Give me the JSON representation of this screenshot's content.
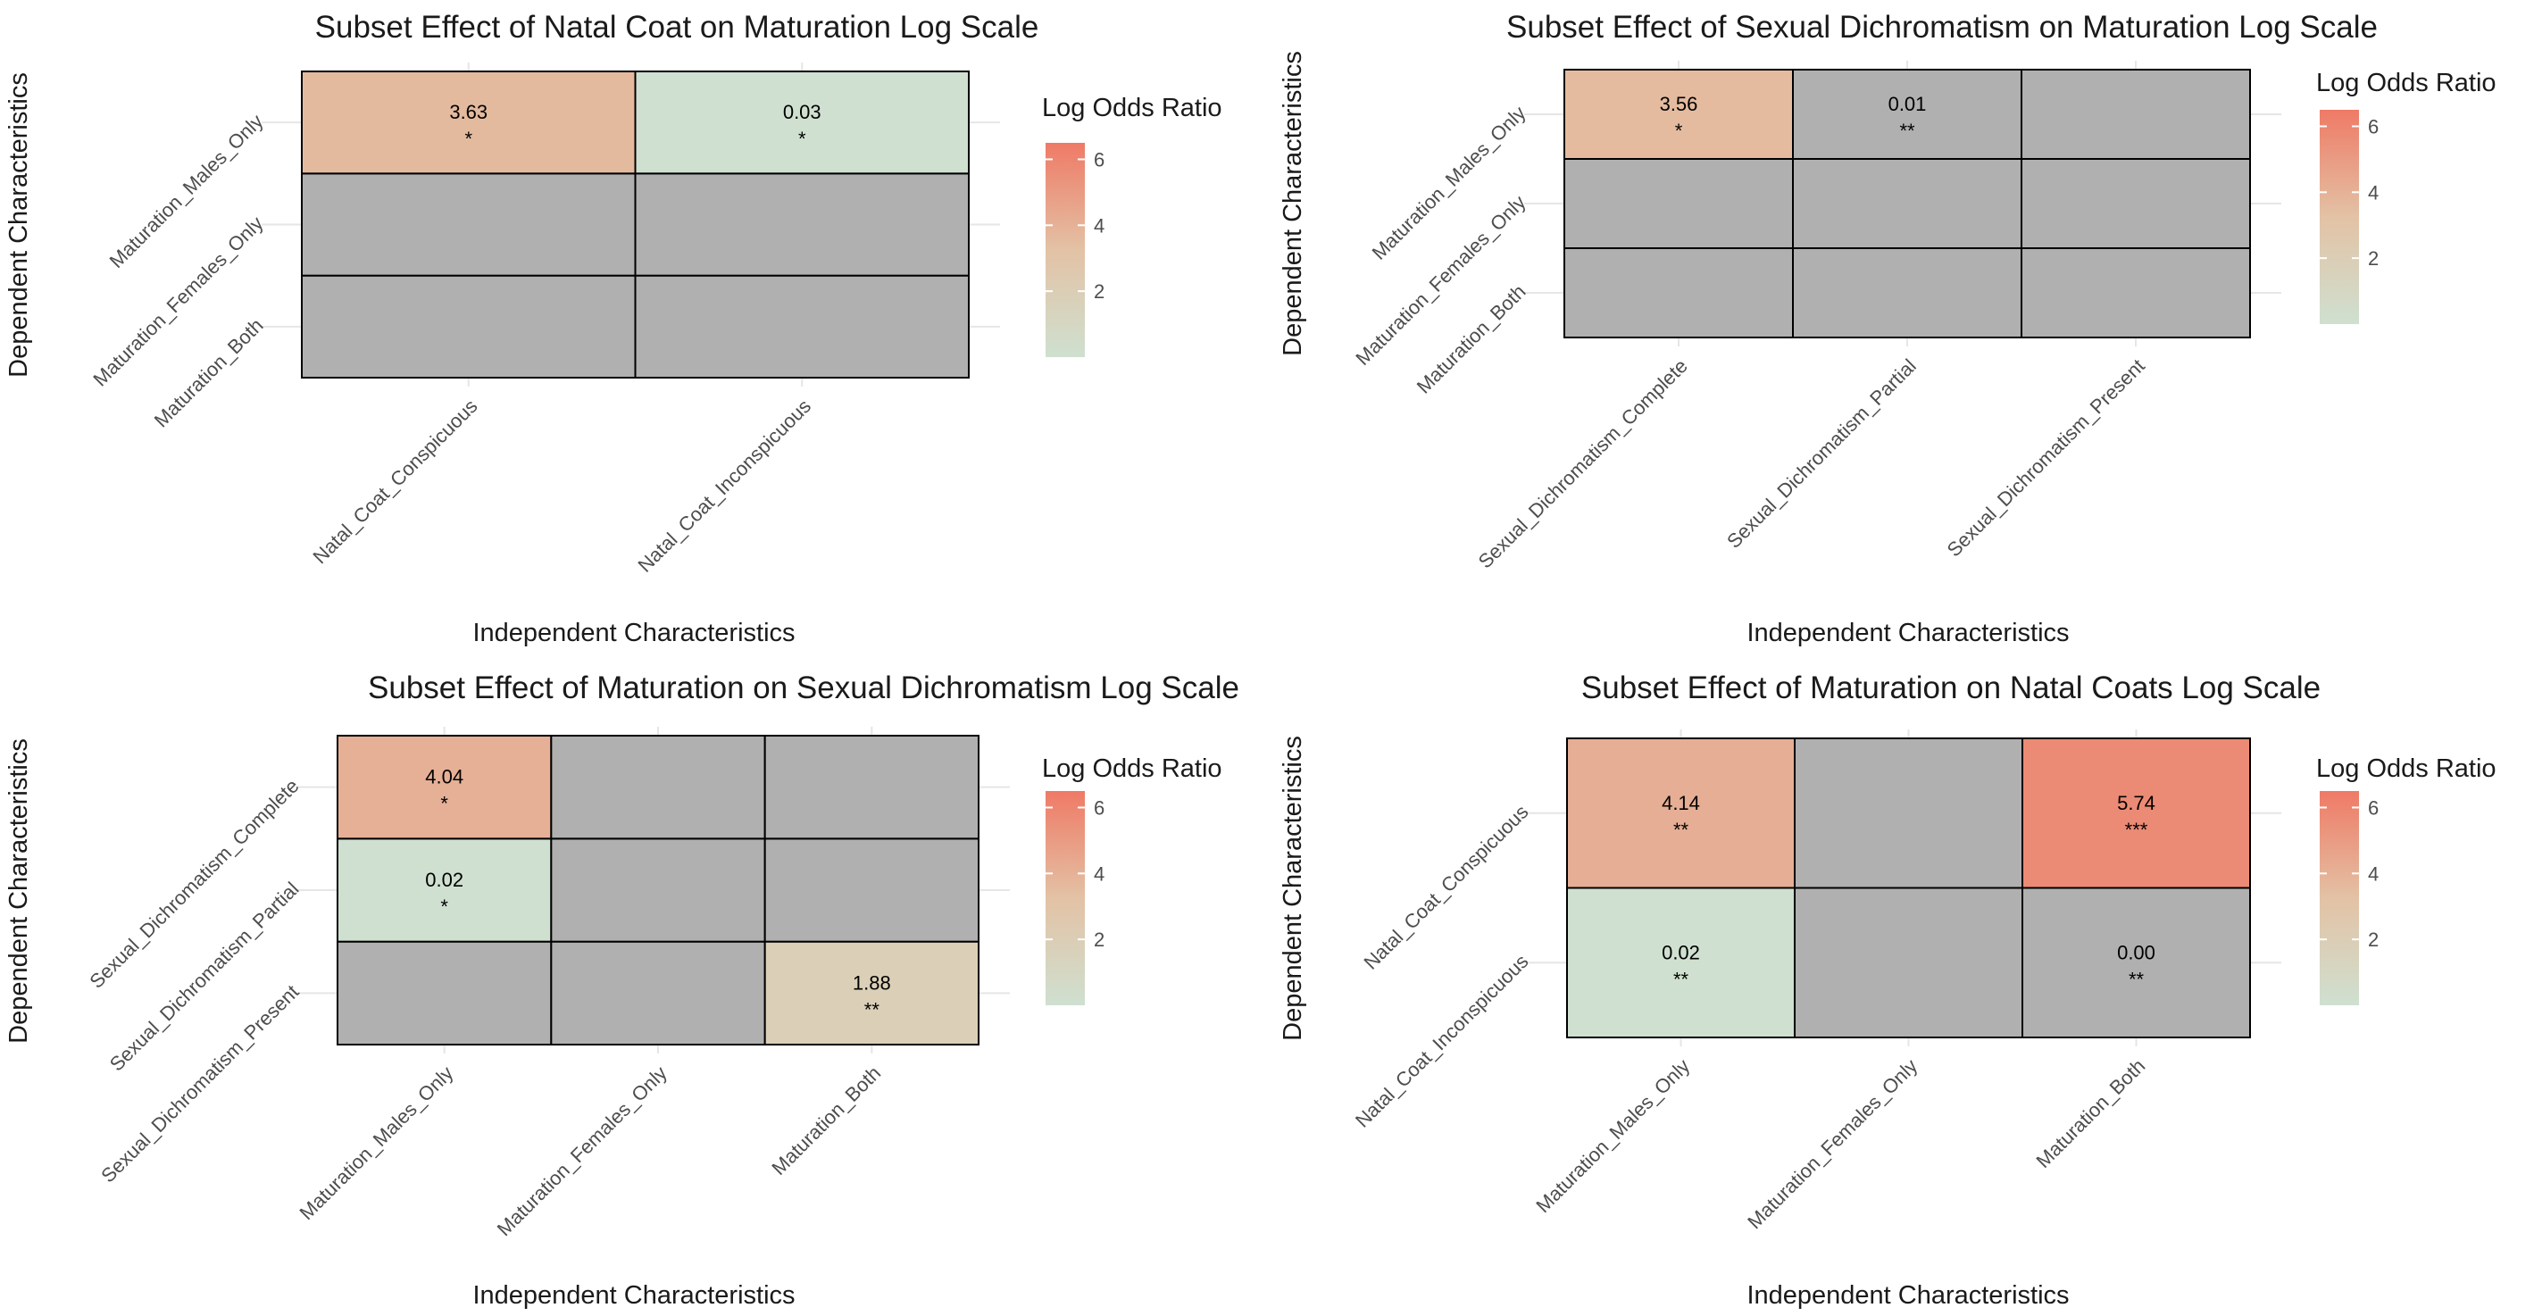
{
  "colors": {
    "na_fill": "#b0b0b0",
    "cell_border": "#000000",
    "grid": "#e6e6e6",
    "scale_low": "#cfe0d0",
    "scale_mid": "#e3c2a5",
    "scale_high": "#ef7a66"
  },
  "chart_data": [
    {
      "type": "heatmap",
      "title": "Subset Effect of Natal Coat on Maturation Log Scale",
      "xlabel": "Independent Characteristics",
      "ylabel": "Dependent Characteristics",
      "x_categories": [
        "Natal_Coat_Conspicuous",
        "Natal_Coat_Inconspicuous"
      ],
      "y_categories": [
        "Maturation_Both",
        "Maturation_Females_Only",
        "Maturation_Males_Only"
      ],
      "cells": [
        {
          "x": "Natal_Coat_Conspicuous",
          "y": "Maturation_Males_Only",
          "value": 3.63,
          "label": "3.63",
          "sig": "*"
        },
        {
          "x": "Natal_Coat_Inconspicuous",
          "y": "Maturation_Males_Only",
          "value": 0.03,
          "label": "0.03",
          "sig": "*"
        }
      ],
      "legend": {
        "title": "Log Odds Ratio",
        "ticks": [
          "2",
          "4",
          "6"
        ],
        "range": [
          0.0,
          6.5
        ]
      }
    },
    {
      "type": "heatmap",
      "title": "Subset Effect of Sexual Dichromatism on Maturation Log Scale",
      "xlabel": "Independent Characteristics",
      "ylabel": "Dependent Characteristics",
      "x_categories": [
        "Sexual_Dichromatism_Complete",
        "Sexual_Dichromatism_Partial",
        "Sexual_Dichromatism_Present"
      ],
      "y_categories": [
        "Maturation_Both",
        "Maturation_Females_Only",
        "Maturation_Males_Only"
      ],
      "cells": [
        {
          "x": "Sexual_Dichromatism_Complete",
          "y": "Maturation_Males_Only",
          "value": 3.56,
          "label": "3.56",
          "sig": "*"
        },
        {
          "x": "Sexual_Dichromatism_Partial",
          "y": "Maturation_Males_Only",
          "value": null,
          "label": "0.01",
          "sig": "**"
        }
      ],
      "legend": {
        "title": "Log Odds Ratio",
        "ticks": [
          "2",
          "4",
          "6"
        ],
        "range": [
          0.0,
          6.5
        ]
      }
    },
    {
      "type": "heatmap",
      "title": "Subset Effect of Maturation on Sexual Dichromatism Log Scale",
      "xlabel": "Independent Characteristics",
      "ylabel": "Dependent Characteristics",
      "x_categories": [
        "Maturation_Males_Only",
        "Maturation_Females_Only",
        "Maturation_Both"
      ],
      "y_categories": [
        "Sexual_Dichromatism_Present",
        "Sexual_Dichromatism_Partial",
        "Sexual_Dichromatism_Complete"
      ],
      "cells": [
        {
          "x": "Maturation_Both",
          "y": "Sexual_Dichromatism_Present",
          "value": 1.88,
          "label": "1.88",
          "sig": "**"
        },
        {
          "x": "Maturation_Males_Only",
          "y": "Sexual_Dichromatism_Partial",
          "value": 0.02,
          "label": "0.02",
          "sig": "*"
        },
        {
          "x": "Maturation_Males_Only",
          "y": "Sexual_Dichromatism_Complete",
          "value": 4.04,
          "label": "4.04",
          "sig": "*"
        }
      ],
      "legend": {
        "title": "Log Odds Ratio",
        "ticks": [
          "2",
          "4",
          "6"
        ],
        "range": [
          0.0,
          6.5
        ]
      }
    },
    {
      "type": "heatmap",
      "title": "Subset Effect of Maturation on Natal Coats Log Scale",
      "xlabel": "Independent Characteristics",
      "ylabel": "Dependent Characteristics",
      "x_categories": [
        "Maturation_Males_Only",
        "Maturation_Females_Only",
        "Maturation_Both"
      ],
      "y_categories": [
        "Natal_Coat_Inconspicuous",
        "Natal_Coat_Conspicuous"
      ],
      "cells": [
        {
          "x": "Maturation_Males_Only",
          "y": "Natal_Coat_Inconspicuous",
          "value": 0.02,
          "label": "0.02",
          "sig": "**"
        },
        {
          "x": "Maturation_Both",
          "y": "Natal_Coat_Inconspicuous",
          "value": null,
          "label": "0.00",
          "sig": "**"
        },
        {
          "x": "Maturation_Males_Only",
          "y": "Natal_Coat_Conspicuous",
          "value": 4.14,
          "label": "4.14",
          "sig": "**"
        },
        {
          "x": "Maturation_Both",
          "y": "Natal_Coat_Conspicuous",
          "value": 5.74,
          "label": "5.74",
          "sig": "***"
        }
      ],
      "legend": {
        "title": "Log Odds Ratio",
        "ticks": [
          "2",
          "4",
          "6"
        ],
        "range": [
          0.0,
          6.5
        ]
      }
    }
  ]
}
